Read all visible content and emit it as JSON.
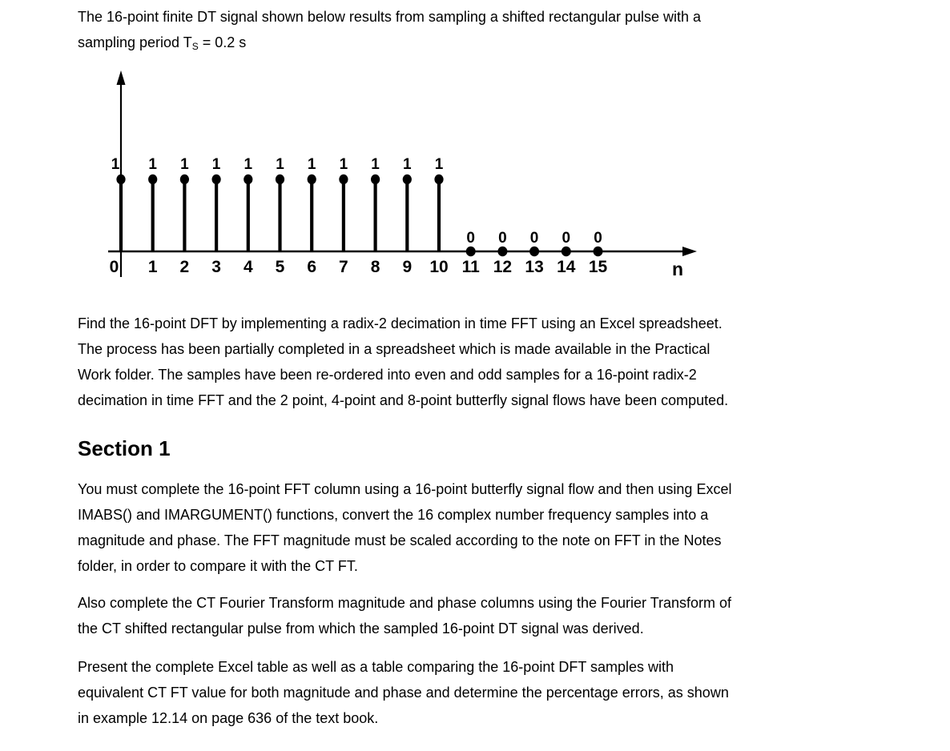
{
  "colors": {
    "ink": "#000000",
    "background": "#ffffff"
  },
  "intro": {
    "line1": "The 16-point finite DT signal shown below results from sampling a shifted rectangular pulse with a",
    "line2": {
      "pre": "sampling period T",
      "sub": "S",
      "post": " = 0.2 s"
    }
  },
  "task_paragraph": {
    "lines": [
      "Find the 16-point DFT by implementing a radix-2 decimation in time FFT using an Excel spreadsheet.",
      "The process has been partially completed in a spreadsheet which is made available in the Practical",
      "Work folder. The samples have been re-ordered into even and odd samples for a 16-point radix-2",
      "decimation in time FFT and the 2 point, 4-point and 8-point butterfly signal flows have been computed."
    ]
  },
  "section1": {
    "heading": "Section 1",
    "para1_lines": [
      "You must complete the 16-point FFT column using a 16-point butterfly signal flow and then using Excel",
      "IMABS() and IMARGUMENT() functions, convert the 16 complex number frequency samples into a",
      "magnitude and phase. The FFT magnitude must be scaled according to the note on FFT in the Notes",
      "folder, in order to compare it with the CT FT."
    ],
    "para2_lines": [
      "Also complete the CT Fourier Transform magnitude and phase columns using the Fourier Transform of",
      "the CT shifted rectangular pulse from which the sampled 16-point DT signal was derived."
    ],
    "para3_lines": [
      "Present the complete Excel table as well as a table comparing the 16-point DFT samples with",
      "equivalent CT FT value for both magnitude and phase and determine the percentage errors, as shown",
      "in example 12.14 on page 636 of the text book."
    ]
  },
  "chart_data": {
    "type": "stem",
    "title": "",
    "xlabel": "n",
    "ylabel": "",
    "x": [
      0,
      1,
      2,
      3,
      4,
      5,
      6,
      7,
      8,
      9,
      10,
      11,
      12,
      13,
      14,
      15
    ],
    "values": [
      1,
      1,
      1,
      1,
      1,
      1,
      1,
      1,
      1,
      1,
      1,
      0,
      0,
      0,
      0,
      0
    ],
    "xlim": [
      0,
      15
    ],
    "ylim": [
      0,
      1
    ],
    "grid": false,
    "point_labels_shown": true,
    "axis_arrows": true
  }
}
